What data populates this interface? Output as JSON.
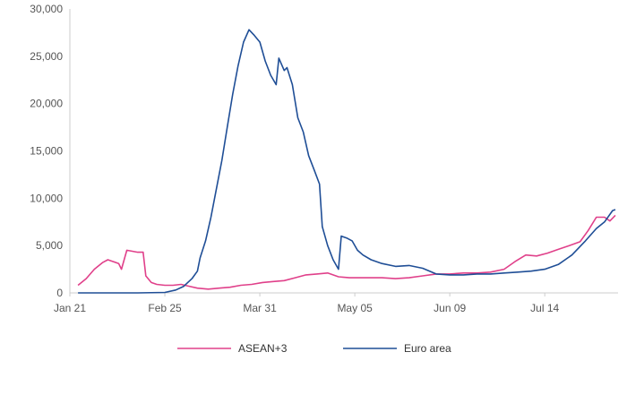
{
  "chart_data": {
    "type": "line",
    "title": "",
    "xlabel": "",
    "ylabel": "",
    "x_ticks": [
      "Jan 21",
      "Feb 25",
      "Mar 31",
      "May 05",
      "Jun 09",
      "Jul 14"
    ],
    "y_ticks": [
      "0",
      "5,000",
      "10,000",
      "15,000",
      "20,000",
      "25,000",
      "30,000"
    ],
    "ylim": [
      0,
      30000
    ],
    "xlim": [
      "2020-01-21",
      "2020-08-10"
    ],
    "grid": false,
    "legend_position": "bottom",
    "series": [
      {
        "name": "ASEAN+3",
        "color": "#e0408a",
        "points": [
          [
            "2020-01-24",
            800
          ],
          [
            "2020-01-27",
            1500
          ],
          [
            "2020-01-30",
            2500
          ],
          [
            "2020-02-02",
            3200
          ],
          [
            "2020-02-04",
            3500
          ],
          [
            "2020-02-06",
            3300
          ],
          [
            "2020-02-08",
            3100
          ],
          [
            "2020-02-09",
            2500
          ],
          [
            "2020-02-11",
            4500
          ],
          [
            "2020-02-13",
            4400
          ],
          [
            "2020-02-15",
            4300
          ],
          [
            "2020-02-17",
            4300
          ],
          [
            "2020-02-18",
            1800
          ],
          [
            "2020-02-20",
            1100
          ],
          [
            "2020-02-22",
            900
          ],
          [
            "2020-02-25",
            800
          ],
          [
            "2020-02-28",
            800
          ],
          [
            "2020-03-02",
            900
          ],
          [
            "2020-03-05",
            700
          ],
          [
            "2020-03-08",
            500
          ],
          [
            "2020-03-12",
            400
          ],
          [
            "2020-03-16",
            500
          ],
          [
            "2020-03-20",
            600
          ],
          [
            "2020-03-24",
            800
          ],
          [
            "2020-03-28",
            900
          ],
          [
            "2020-04-01",
            1100
          ],
          [
            "2020-04-05",
            1200
          ],
          [
            "2020-04-09",
            1300
          ],
          [
            "2020-04-13",
            1600
          ],
          [
            "2020-04-17",
            1900
          ],
          [
            "2020-04-21",
            2000
          ],
          [
            "2020-04-25",
            2100
          ],
          [
            "2020-04-29",
            1700
          ],
          [
            "2020-05-03",
            1600
          ],
          [
            "2020-05-07",
            1600
          ],
          [
            "2020-05-11",
            1600
          ],
          [
            "2020-05-15",
            1600
          ],
          [
            "2020-05-20",
            1500
          ],
          [
            "2020-05-25",
            1600
          ],
          [
            "2020-05-30",
            1800
          ],
          [
            "2020-06-04",
            2000
          ],
          [
            "2020-06-09",
            2000
          ],
          [
            "2020-06-14",
            2100
          ],
          [
            "2020-06-19",
            2100
          ],
          [
            "2020-06-24",
            2200
          ],
          [
            "2020-06-29",
            2500
          ],
          [
            "2020-07-03",
            3300
          ],
          [
            "2020-07-07",
            4000
          ],
          [
            "2020-07-11",
            3900
          ],
          [
            "2020-07-15",
            4200
          ],
          [
            "2020-07-19",
            4600
          ],
          [
            "2020-07-23",
            5000
          ],
          [
            "2020-07-27",
            5400
          ],
          [
            "2020-07-30",
            6600
          ],
          [
            "2020-08-02",
            8000
          ],
          [
            "2020-08-05",
            8000
          ],
          [
            "2020-08-07",
            7600
          ],
          [
            "2020-08-09",
            8200
          ]
        ]
      },
      {
        "name": "Euro area",
        "color": "#1f4e96",
        "points": [
          [
            "2020-01-24",
            0
          ],
          [
            "2020-02-05",
            0
          ],
          [
            "2020-02-15",
            0
          ],
          [
            "2020-02-25",
            50
          ],
          [
            "2020-02-29",
            300
          ],
          [
            "2020-03-03",
            700
          ],
          [
            "2020-03-06",
            1500
          ],
          [
            "2020-03-08",
            2300
          ],
          [
            "2020-03-09",
            3700
          ],
          [
            "2020-03-11",
            5500
          ],
          [
            "2020-03-13",
            8000
          ],
          [
            "2020-03-15",
            11000
          ],
          [
            "2020-03-17",
            14000
          ],
          [
            "2020-03-19",
            17500
          ],
          [
            "2020-03-21",
            21000
          ],
          [
            "2020-03-23",
            24000
          ],
          [
            "2020-03-25",
            26500
          ],
          [
            "2020-03-27",
            27800
          ],
          [
            "2020-03-29",
            27200
          ],
          [
            "2020-03-31",
            26500
          ],
          [
            "2020-04-02",
            24500
          ],
          [
            "2020-04-04",
            23000
          ],
          [
            "2020-04-06",
            22000
          ],
          [
            "2020-04-07",
            24800
          ],
          [
            "2020-04-09",
            23500
          ],
          [
            "2020-04-10",
            23800
          ],
          [
            "2020-04-12",
            22000
          ],
          [
            "2020-04-14",
            18500
          ],
          [
            "2020-04-16",
            17000
          ],
          [
            "2020-04-18",
            14500
          ],
          [
            "2020-04-20",
            13000
          ],
          [
            "2020-04-22",
            11500
          ],
          [
            "2020-04-23",
            7000
          ],
          [
            "2020-04-25",
            5000
          ],
          [
            "2020-04-27",
            3500
          ],
          [
            "2020-04-29",
            2500
          ],
          [
            "2020-04-30",
            6000
          ],
          [
            "2020-05-02",
            5800
          ],
          [
            "2020-05-04",
            5500
          ],
          [
            "2020-05-06",
            4500
          ],
          [
            "2020-05-08",
            4000
          ],
          [
            "2020-05-11",
            3500
          ],
          [
            "2020-05-15",
            3100
          ],
          [
            "2020-05-20",
            2800
          ],
          [
            "2020-05-25",
            2900
          ],
          [
            "2020-05-30",
            2600
          ],
          [
            "2020-06-04",
            2000
          ],
          [
            "2020-06-09",
            1900
          ],
          [
            "2020-06-14",
            1900
          ],
          [
            "2020-06-19",
            2000
          ],
          [
            "2020-06-24",
            2000
          ],
          [
            "2020-06-29",
            2100
          ],
          [
            "2020-07-04",
            2200
          ],
          [
            "2020-07-09",
            2300
          ],
          [
            "2020-07-14",
            2500
          ],
          [
            "2020-07-19",
            3000
          ],
          [
            "2020-07-24",
            4000
          ],
          [
            "2020-07-29",
            5500
          ],
          [
            "2020-08-02",
            6800
          ],
          [
            "2020-08-05",
            7500
          ],
          [
            "2020-08-08",
            8700
          ],
          [
            "2020-08-09",
            8800
          ]
        ]
      }
    ]
  }
}
